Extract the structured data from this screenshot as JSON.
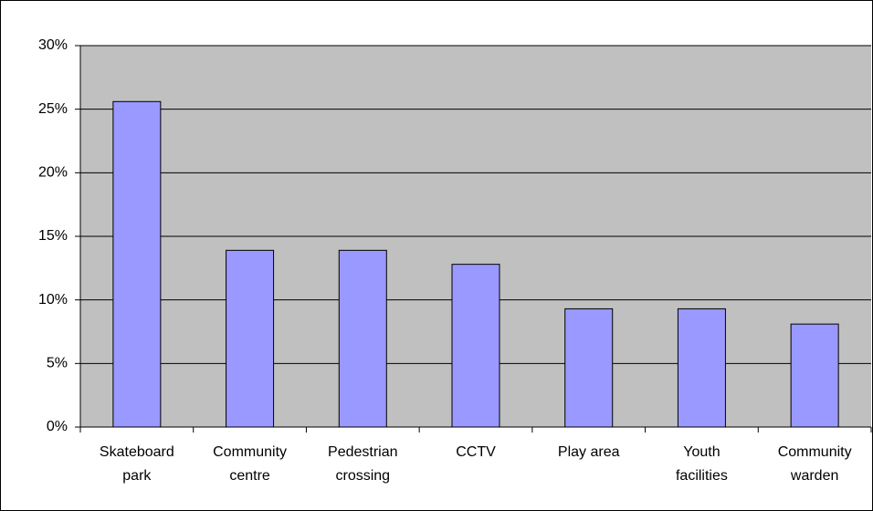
{
  "chart_data": {
    "type": "bar",
    "categories": [
      "Skateboard park",
      "Community centre",
      "Pedestrian crossing",
      "CCTV",
      "Play area",
      "Youth facilities",
      "Community warden"
    ],
    "values": [
      25.6,
      13.9,
      13.9,
      12.8,
      9.3,
      9.3,
      8.1
    ],
    "color": "#9999ff",
    "ylim": [
      0,
      30
    ],
    "yticks": [
      {
        "value": 0,
        "label": "0%"
      },
      {
        "value": 5,
        "label": "5%"
      },
      {
        "value": 10,
        "label": "10%"
      },
      {
        "value": 15,
        "label": "15%"
      },
      {
        "value": 20,
        "label": "20%"
      },
      {
        "value": 25,
        "label": "25%"
      },
      {
        "value": 30,
        "label": "30%"
      }
    ],
    "grid": true
  }
}
